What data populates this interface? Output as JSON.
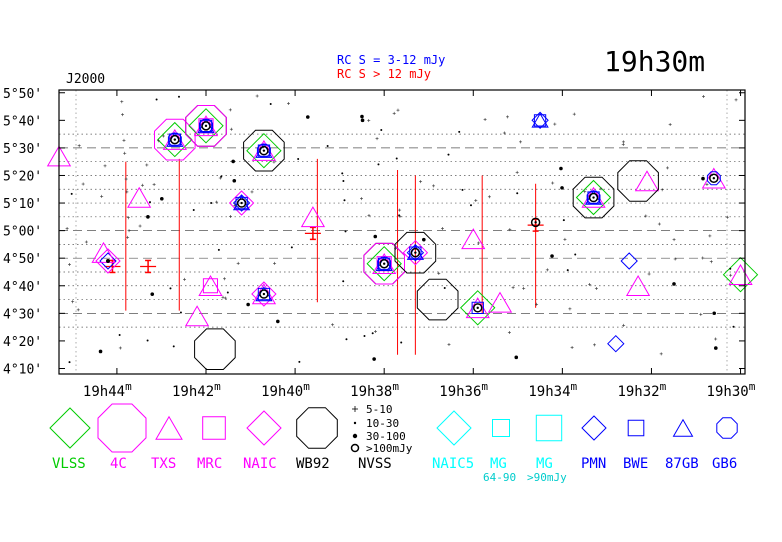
{
  "chart_data": {
    "type": "scatter",
    "title": "19h30m",
    "epoch": "J2000",
    "rc_legend": [
      {
        "text": "RC S = 3-12 mJy",
        "color": "#0000ff"
      },
      {
        "text": "RC S > 12 mJy",
        "color": "#ff0000"
      }
    ],
    "x_axis": {
      "ticks": [
        "19h44m",
        "19h42m",
        "19h40m",
        "19h38m",
        "19h36m",
        "19h34m",
        "19h32m",
        "19h30m"
      ],
      "tick_ra_min": [
        44,
        42,
        40,
        38,
        36,
        34,
        32,
        30
      ],
      "xlim_ra_min": [
        45.3,
        29.9
      ]
    },
    "y_axis": {
      "ticks": [
        "5°50'",
        "5°40'",
        "5°30'",
        "5°20'",
        "5°10'",
        "5°00'",
        "4°50'",
        "4°40'",
        "4°30'",
        "4°20'",
        "4°10'"
      ],
      "tick_dec_arcmin": [
        350,
        340,
        330,
        320,
        310,
        300,
        290,
        280,
        270,
        260,
        250
      ],
      "ylim_dec_arcmin": [
        248,
        351
      ]
    },
    "survey_legend": [
      {
        "label": "VLSS",
        "shape": "diamond",
        "color": "#00cc00"
      },
      {
        "label": "4C",
        "shape": "octagon",
        "color": "#ff00ff"
      },
      {
        "label": "TXS",
        "shape": "triangle",
        "color": "#ff00ff"
      },
      {
        "label": "MRC",
        "shape": "square",
        "color": "#ff00ff"
      },
      {
        "label": "NAIC",
        "shape": "diamond",
        "color": "#ff00ff"
      },
      {
        "label": "WB92",
        "shape": "octagon",
        "color": "#000000"
      },
      {
        "label": "NVSS",
        "shape": "dots",
        "color": "#000000"
      },
      {
        "label": "NAIC5",
        "shape": "diamond",
        "color": "#00ffff"
      },
      {
        "label": "MG",
        "shape": "square",
        "color": "#00ffff",
        "sub": "64-90"
      },
      {
        "label": "MG",
        "shape": "square-lg",
        "color": "#00ffff",
        "sub": ">90mJy"
      },
      {
        "label": "PMN",
        "shape": "diamond",
        "color": "#0000ff"
      },
      {
        "label": "BWE",
        "shape": "square",
        "color": "#0000ff"
      },
      {
        "label": "87GB",
        "shape": "triangle",
        "color": "#0000ff"
      },
      {
        "label": "GB6",
        "shape": "octagon",
        "color": "#0000ff"
      }
    ],
    "nvss_legend": [
      "5-10",
      "10-30",
      "30-100",
      ">100mJy"
    ],
    "sources": [
      {
        "ra": 44.2,
        "dec": 289,
        "s": [
          "naic",
          "pmn",
          "nvss"
        ]
      },
      {
        "ra": 42.7,
        "dec": 333,
        "s": [
          "vlss",
          "4c",
          "txs",
          "gb6",
          "bwe",
          "87gb",
          "nvss-big"
        ]
      },
      {
        "ra": 42.0,
        "dec": 338,
        "s": [
          "wb92",
          "vlss",
          "4c",
          "txs",
          "mrc",
          "gb6",
          "bwe",
          "87gb",
          "nvss-big"
        ]
      },
      {
        "ra": 40.7,
        "dec": 329,
        "s": [
          "wb92",
          "vlss",
          "txs",
          "gb6",
          "bwe",
          "87gb",
          "nvss-big"
        ]
      },
      {
        "ra": 41.2,
        "dec": 310,
        "s": [
          "naic",
          "pmn",
          "bwe",
          "87gb",
          "nvss-big"
        ]
      },
      {
        "ra": 40.7,
        "dec": 277,
        "s": [
          "naic",
          "txs",
          "bwe",
          "87gb",
          "nvss-big"
        ]
      },
      {
        "ra": 38.0,
        "dec": 288,
        "s": [
          "wb92",
          "vlss",
          "4c",
          "txs",
          "mrc",
          "gb6",
          "bwe",
          "87gb",
          "nvss-big"
        ]
      },
      {
        "ra": 37.3,
        "dec": 292,
        "s": [
          "wb92",
          "naic",
          "pmn",
          "bwe",
          "87gb",
          "nvss-big"
        ]
      },
      {
        "ra": 35.9,
        "dec": 272,
        "s": [
          "vlss",
          "txs",
          "bwe",
          "nvss-big"
        ]
      },
      {
        "ra": 34.5,
        "dec": 340,
        "s": [
          "87gb",
          "bwe",
          "pmn"
        ]
      },
      {
        "ra": 33.3,
        "dec": 312,
        "s": [
          "wb92",
          "vlss",
          "txs",
          "gb6",
          "bwe",
          "87gb",
          "nvss-big"
        ]
      },
      {
        "ra": 30.6,
        "dec": 319,
        "s": [
          "txs",
          "gb6",
          "nvss-big"
        ]
      },
      {
        "ra": 30.0,
        "dec": 284,
        "s": [
          "vlss",
          "txs"
        ]
      },
      {
        "ra": 32.5,
        "dec": 289,
        "s": [
          "pmn"
        ]
      },
      {
        "ra": 32.8,
        "dec": 259,
        "s": [
          "pmn"
        ]
      },
      {
        "ra": 44.3,
        "dec": 292,
        "s": [
          "txs"
        ]
      },
      {
        "ra": 43.5,
        "dec": 312,
        "s": [
          "txs"
        ]
      },
      {
        "ra": 45.3,
        "dec": 327,
        "s": [
          "txs"
        ]
      },
      {
        "ra": 39.6,
        "dec": 305,
        "s": [
          "txs"
        ]
      },
      {
        "ra": 36.0,
        "dec": 297,
        "s": [
          "txs"
        ]
      },
      {
        "ra": 35.4,
        "dec": 274,
        "s": [
          "txs"
        ]
      },
      {
        "ra": 32.1,
        "dec": 318,
        "s": [
          "txs"
        ]
      },
      {
        "ra": 32.3,
        "dec": 280,
        "s": [
          "txs"
        ]
      },
      {
        "ra": 41.9,
        "dec": 280,
        "s": [
          "txs",
          "mrc"
        ]
      },
      {
        "ra": 42.2,
        "dec": 269,
        "s": [
          "txs"
        ]
      },
      {
        "ra": 41.8,
        "dec": 257,
        "s": [
          "wb92"
        ]
      },
      {
        "ra": 36.8,
        "dec": 275,
        "s": [
          "wb92"
        ]
      },
      {
        "ra": 32.3,
        "dec": 318,
        "s": [
          "wb92"
        ]
      },
      {
        "ra": 34.6,
        "dec": 303,
        "s": [
          "nvss-big"
        ]
      }
    ],
    "rc_segments": [
      {
        "ra": 43.8,
        "dec_top": 325,
        "dec_bot": 271
      },
      {
        "ra": 42.6,
        "dec_top": 326,
        "dec_bot": 271
      },
      {
        "ra": 39.5,
        "dec_top": 326,
        "dec_bot": 274
      },
      {
        "ra": 37.3,
        "dec_top": 320,
        "dec_bot": 255
      },
      {
        "ra": 37.7,
        "dec_top": 322,
        "dec_bot": 255
      },
      {
        "ra": 35.8,
        "dec_top": 320,
        "dec_bot": 270
      },
      {
        "ra": 34.6,
        "dec_top": 317,
        "dec_bot": 272
      }
    ],
    "rc_errorbars": [
      {
        "ra": 44.1,
        "dec": 287
      },
      {
        "ra": 43.3,
        "dec": 287
      },
      {
        "ra": 39.6,
        "dec": 299
      },
      {
        "ra": 34.6,
        "dec": 302
      }
    ]
  }
}
